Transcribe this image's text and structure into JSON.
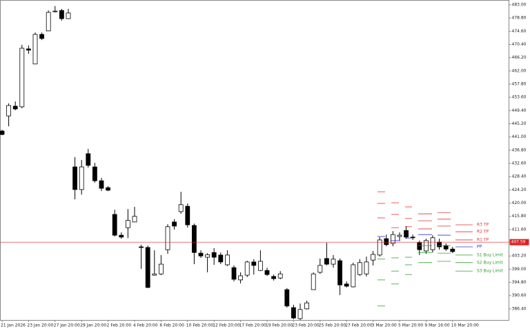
{
  "chart_data": {
    "type": "candlestick",
    "categories": [
      "21 Jan 2026",
      null,
      null,
      null,
      "23 Jan 20:00",
      null,
      null,
      null,
      "27 Jan 20:00",
      null,
      null,
      null,
      "29 Jan 20:00",
      null,
      null,
      null,
      "2 Feb 20:00",
      null,
      null,
      null,
      "4 Feb 20:00",
      null,
      null,
      null,
      "6 Feb 20:00",
      null,
      null,
      null,
      "10 Feb 20:00",
      null,
      null,
      null,
      "12 Feb 20:00",
      null,
      null,
      null,
      "17 Feb 20:00",
      null,
      null,
      null,
      "19 Feb 20:00",
      null,
      null,
      null,
      "23 Feb 20:00",
      null,
      null,
      null,
      "25 Feb 20:00",
      null,
      null,
      null,
      "27 Feb 20:00",
      null,
      null,
      null,
      "3 Mar 20:00",
      null,
      null,
      null,
      "5 Mar 20:00",
      null,
      null,
      null,
      "9 Mar 16:00",
      null,
      null,
      null,
      "10 Mar 20:00"
    ],
    "open": [
      442.9,
      447.7,
      450.8,
      450.6,
      469.0,
      464.2,
      473.6,
      474.7,
      480.8,
      481.2,
      478.6,
      431.5,
      424.3,
      435.7,
      431.5,
      427.1,
      424.9,
      416.4,
      409.8,
      412.2,
      414.0,
      406.1,
      405.9,
      397.1,
      397.5,
      405.2,
      414.0,
      417.3,
      419.0,
      412.9,
      404.1,
      402.8,
      404.3,
      403.5,
      400.4,
      399.5,
      395.6,
      397.1,
      401.3,
      398.6,
      398.6,
      396.7,
      396.2,
      392.5,
      386.8,
      383.3,
      386.4,
      392.5,
      398.0,
      402.4,
      400.6,
      401.7,
      394.3,
      393.4,
      397.3,
      397.5,
      401.9,
      403.5,
      408.7,
      407.2,
      409.4,
      411.3,
      409.2,
      407.4,
      404.8,
      405.2,
      407.6,
      406.5,
      405.4
    ],
    "high": [
      443.3,
      451.7,
      452.3,
      470.3,
      470.1,
      474.2,
      474.2,
      481.2,
      482.6,
      481.7,
      481.7,
      434.6,
      433.7,
      437.2,
      432.8,
      428.0,
      425.4,
      417.9,
      410.7,
      418.1,
      418.8,
      406.8,
      406.5,
      405.0,
      403.5,
      413.3,
      414.9,
      423.6,
      419.9,
      413.5,
      405.0,
      404.1,
      405.7,
      404.3,
      405.0,
      400.2,
      398.0,
      401.7,
      402.2,
      405.0,
      399.5,
      397.3,
      398.4,
      393.0,
      387.7,
      388.1,
      389.0,
      398.0,
      402.4,
      407.4,
      403.5,
      402.4,
      395.1,
      401.1,
      402.2,
      403.0,
      404.8,
      409.2,
      410.0,
      411.1,
      410.7,
      412.7,
      410.0,
      408.1,
      408.7,
      409.8,
      408.7,
      407.2,
      406.1
    ],
    "low": [
      441.6,
      444.4,
      449.5,
      450.1,
      467.4,
      464.2,
      471.8,
      474.7,
      480.6,
      478.0,
      478.6,
      421.2,
      422.7,
      431.3,
      426.5,
      423.8,
      423.8,
      409.4,
      408.7,
      408.9,
      414.0,
      399.1,
      393.0,
      396.9,
      397.1,
      403.9,
      411.6,
      416.6,
      412.2,
      400.6,
      402.6,
      398.0,
      400.4,
      400.6,
      400.0,
      395.1,
      394.5,
      396.5,
      397.3,
      398.4,
      396.9,
      395.4,
      395.8,
      386.8,
      383.1,
      382.9,
      386.2,
      392.5,
      397.5,
      400.2,
      399.5,
      390.8,
      393.2,
      393.2,
      396.9,
      396.7,
      400.2,
      403.0,
      406.3,
      406.3,
      407.9,
      408.7,
      408.3,
      403.5,
      403.9,
      404.3,
      405.2,
      404.8,
      404.1
    ],
    "close": [
      441.8,
      451.0,
      449.9,
      469.2,
      468.6,
      473.6,
      472.3,
      480.6,
      481.0,
      478.6,
      480.4,
      424.3,
      431.5,
      432.0,
      427.1,
      424.7,
      424.1,
      409.8,
      409.2,
      414.5,
      415.8,
      406.0,
      393.2,
      397.5,
      400.6,
      412.5,
      412.7,
      419.5,
      413.1,
      404.3,
      403.2,
      403.6,
      402.8,
      401.3,
      403.5,
      395.8,
      396.9,
      401.3,
      400.2,
      401.5,
      397.3,
      396.0,
      397.5,
      387.3,
      383.5,
      386.2,
      388.3,
      397.5,
      400.2,
      400.6,
      402.2,
      394.0,
      393.6,
      400.4,
      401.1,
      401.3,
      403.7,
      408.3,
      406.8,
      410.0,
      409.8,
      409.2,
      409.0,
      405.2,
      408.1,
      409.0,
      406.1,
      405.4,
      404.6
    ],
    "up_color": "#ffffff",
    "down_color": "#000000",
    "ylim": [
      382.87,
      484.53
    ],
    "yticks": [
      {
        "value": 483.0,
        "label": "483.00"
      },
      {
        "value": 478.8,
        "label": "478.80"
      },
      {
        "value": 474.6,
        "label": "474.60"
      },
      {
        "value": 470.4,
        "label": "470.40"
      },
      {
        "value": 466.2,
        "label": "466.20"
      },
      {
        "value": 462.0,
        "label": "462.00"
      },
      {
        "value": 457.8,
        "label": "457.80"
      },
      {
        "value": 453.6,
        "label": "453.60"
      },
      {
        "value": 449.4,
        "label": "449.40"
      },
      {
        "value": 445.2,
        "label": "445.20"
      },
      {
        "value": 441.0,
        "label": "441.00"
      },
      {
        "value": 436.8,
        "label": "436.80"
      },
      {
        "value": 432.6,
        "label": "432.60"
      },
      {
        "value": 428.4,
        "label": "428.40"
      },
      {
        "value": 424.2,
        "label": "424.20"
      },
      {
        "value": 420.0,
        "label": "420.00"
      },
      {
        "value": 415.8,
        "label": "415.80"
      },
      {
        "value": 411.6,
        "label": "411.60"
      },
      {
        "value": 403.2,
        "label": "403.20"
      },
      {
        "value": 399.0,
        "label": "399.00"
      },
      {
        "value": 394.8,
        "label": "394.80"
      },
      {
        "value": 390.6,
        "label": "390.60"
      },
      {
        "value": 386.4,
        "label": "386.40"
      }
    ],
    "current_price": 407.59,
    "current_color": "#e02020",
    "levels": [
      {
        "name": "R3 TP",
        "color": "#e03131",
        "values": [
          423.6,
          420.1,
          418.8,
          416.6,
          417.0,
          413.1
        ]
      },
      {
        "name": "R2 TP",
        "color": "#e03131",
        "values": [
          419.9,
          416.4,
          415.1,
          414.4,
          414.9,
          410.9
        ]
      },
      {
        "name": "R1 TP",
        "color": "#e03131",
        "values": [
          415.3,
          412.2,
          412.5,
          411.8,
          412.7,
          408.3
        ]
      },
      {
        "name": "PP",
        "color": "#3030e0",
        "values": [
          409.4,
          408.1,
          408.9,
          410.0,
          409.8,
          406.1
        ]
      },
      {
        "name": "S1 Buy Limit",
        "color": "#2ca02c",
        "values": [
          402.2,
          402.6,
          402.8,
          406.5,
          406.5,
          403.5
        ]
      },
      {
        "name": "S2 Buy Limit",
        "color": "#2ca02c",
        "values": [
          395.6,
          398.4,
          400.4,
          404.3,
          404.1,
          401.1
        ]
      },
      {
        "name": "S3 Buy Limit",
        "color": "#2ca02c",
        "values": [
          387.3,
          394.3,
          397.3,
          401.1,
          401.5,
          398.4
        ]
      }
    ]
  }
}
